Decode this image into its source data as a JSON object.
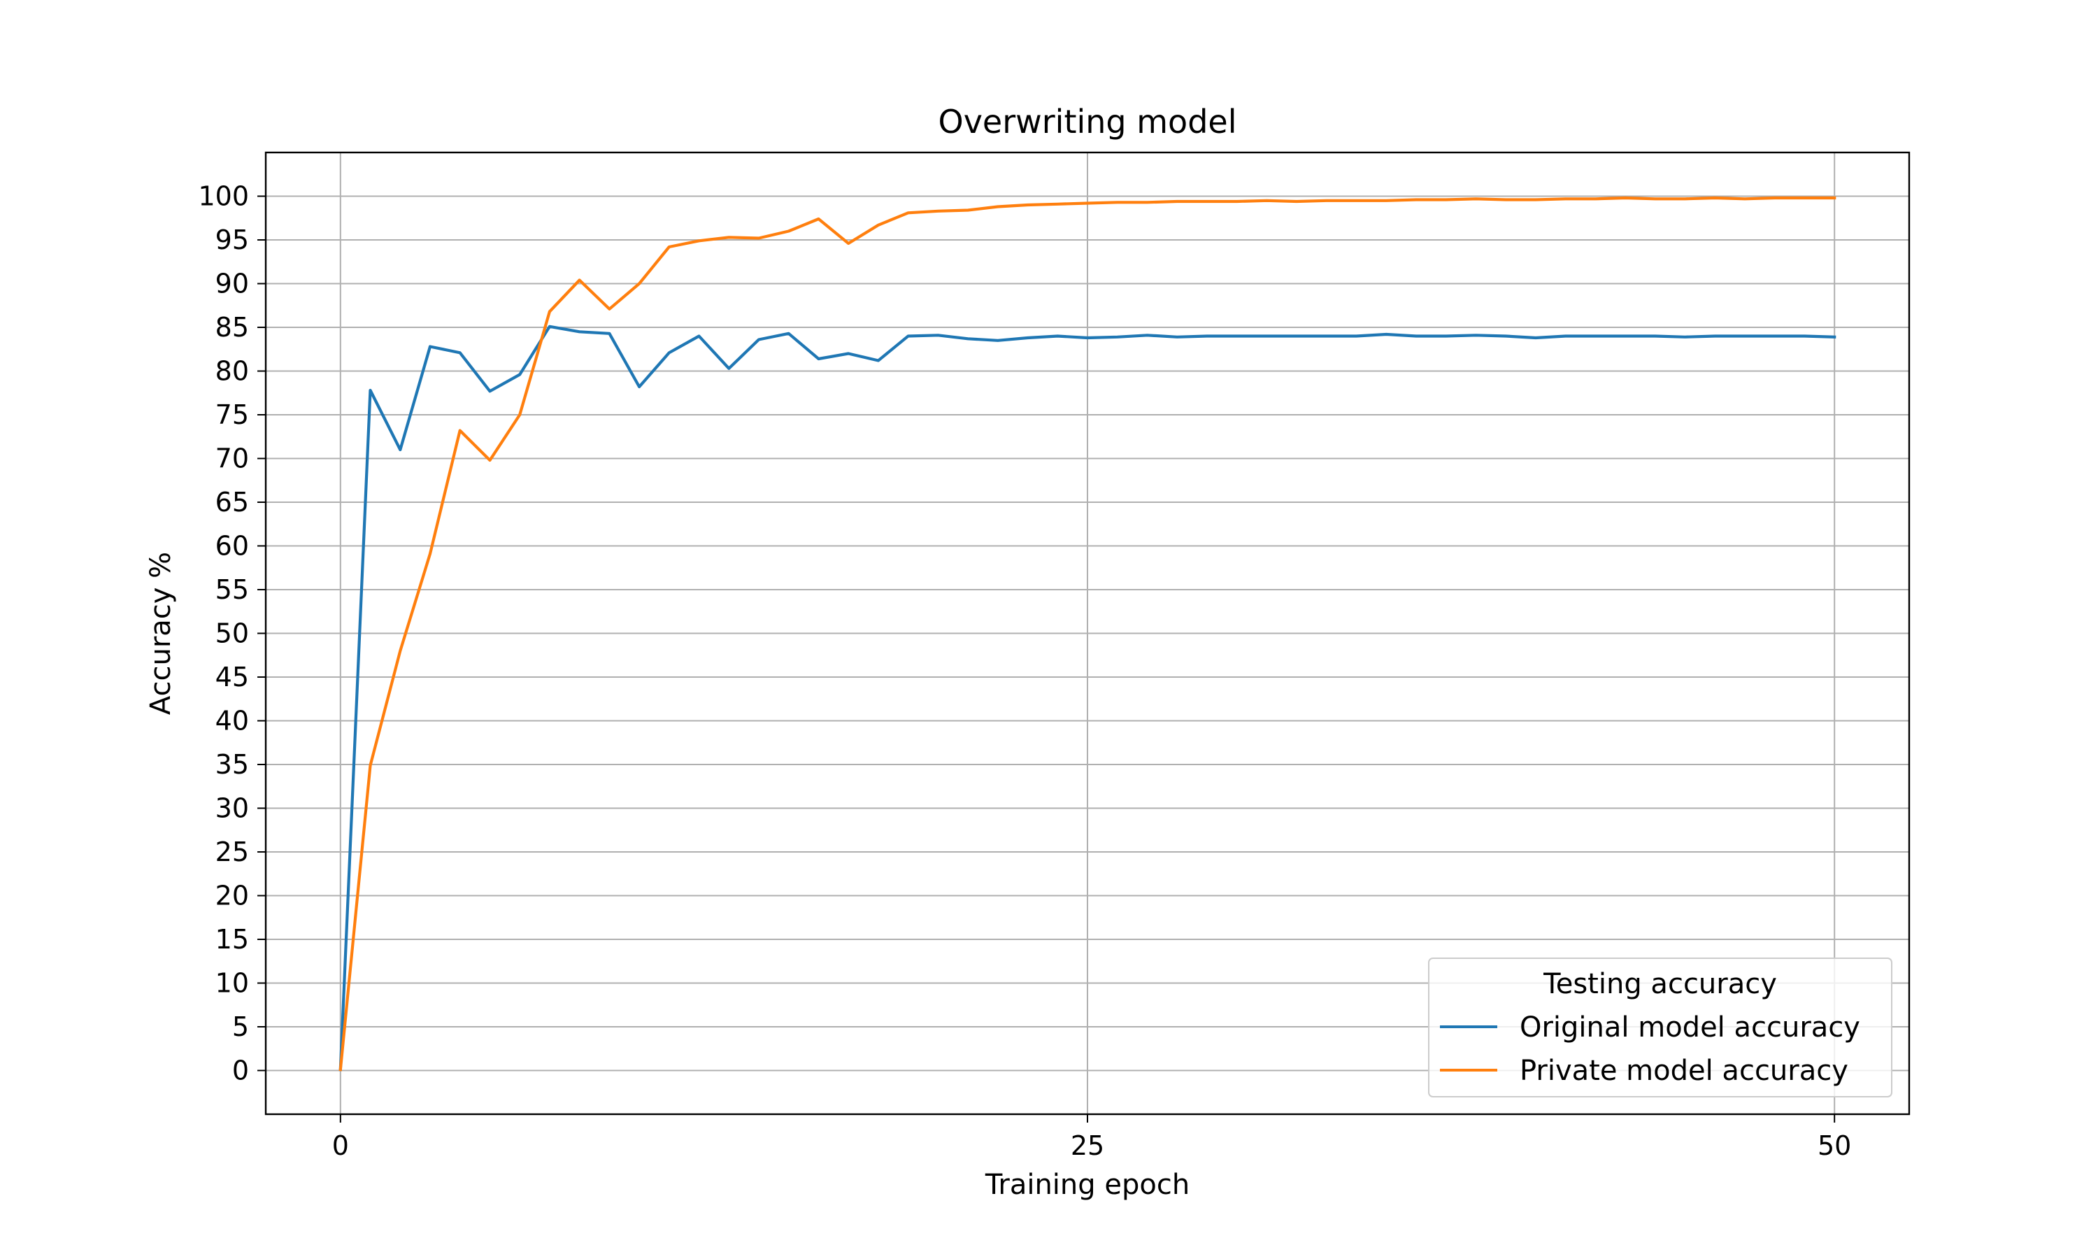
{
  "chart_data": {
    "type": "line",
    "title": "Overwriting model",
    "xlabel": "Training epoch",
    "ylabel": "Accuracy %",
    "xlim": [
      -2.5,
      52.5
    ],
    "ylim": [
      -5,
      105
    ],
    "xticks": [
      0,
      25,
      50
    ],
    "yticks": [
      0,
      5,
      10,
      15,
      20,
      25,
      30,
      35,
      40,
      45,
      50,
      55,
      60,
      65,
      70,
      75,
      80,
      85,
      90,
      95,
      100
    ],
    "grid": true,
    "legend": {
      "title": "Testing accuracy",
      "placement": "lower-right"
    },
    "x": [
      0,
      1,
      2,
      3,
      4,
      5,
      6,
      7,
      8,
      9,
      10,
      11,
      12,
      13,
      14,
      15,
      16,
      17,
      18,
      19,
      20,
      21,
      22,
      23,
      24,
      25,
      26,
      27,
      28,
      29,
      30,
      31,
      32,
      33,
      34,
      35,
      36,
      37,
      38,
      39,
      40,
      41,
      42,
      43,
      44,
      45,
      46,
      47,
      48,
      49,
      50
    ],
    "series": [
      {
        "name": "Original model accuracy",
        "color": "#1f77b4",
        "values": [
          0.1,
          77.8,
          71.0,
          82.8,
          82.1,
          77.7,
          79.6,
          85.1,
          84.5,
          84.3,
          78.2,
          82.1,
          84.0,
          80.3,
          83.6,
          84.3,
          81.4,
          82.0,
          81.2,
          84.0,
          84.1,
          83.7,
          83.5,
          83.8,
          84.0,
          83.8,
          83.9,
          84.1,
          83.9,
          84.0,
          84.0,
          84.0,
          84.0,
          84.0,
          84.0,
          84.2,
          84.0,
          84.0,
          84.1,
          84.0,
          83.8,
          84.0,
          84.0,
          84.0,
          84.0,
          83.9,
          84.0,
          84.0,
          84.0,
          84.0,
          83.9
        ]
      },
      {
        "name": "Private model accuracy",
        "color": "#ff7f0e",
        "values": [
          0.1,
          34.9,
          48.0,
          59.1,
          73.2,
          69.8,
          75.0,
          86.8,
          90.4,
          87.1,
          90.0,
          94.2,
          94.9,
          95.3,
          95.2,
          96.0,
          97.4,
          94.6,
          96.7,
          98.1,
          98.3,
          98.4,
          98.8,
          99.0,
          99.1,
          99.2,
          99.3,
          99.3,
          99.4,
          99.4,
          99.4,
          99.5,
          99.4,
          99.5,
          99.5,
          99.5,
          99.6,
          99.6,
          99.7,
          99.6,
          99.6,
          99.7,
          99.7,
          99.8,
          99.7,
          99.7,
          99.8,
          99.7,
          99.8,
          99.8,
          99.8
        ]
      }
    ]
  }
}
